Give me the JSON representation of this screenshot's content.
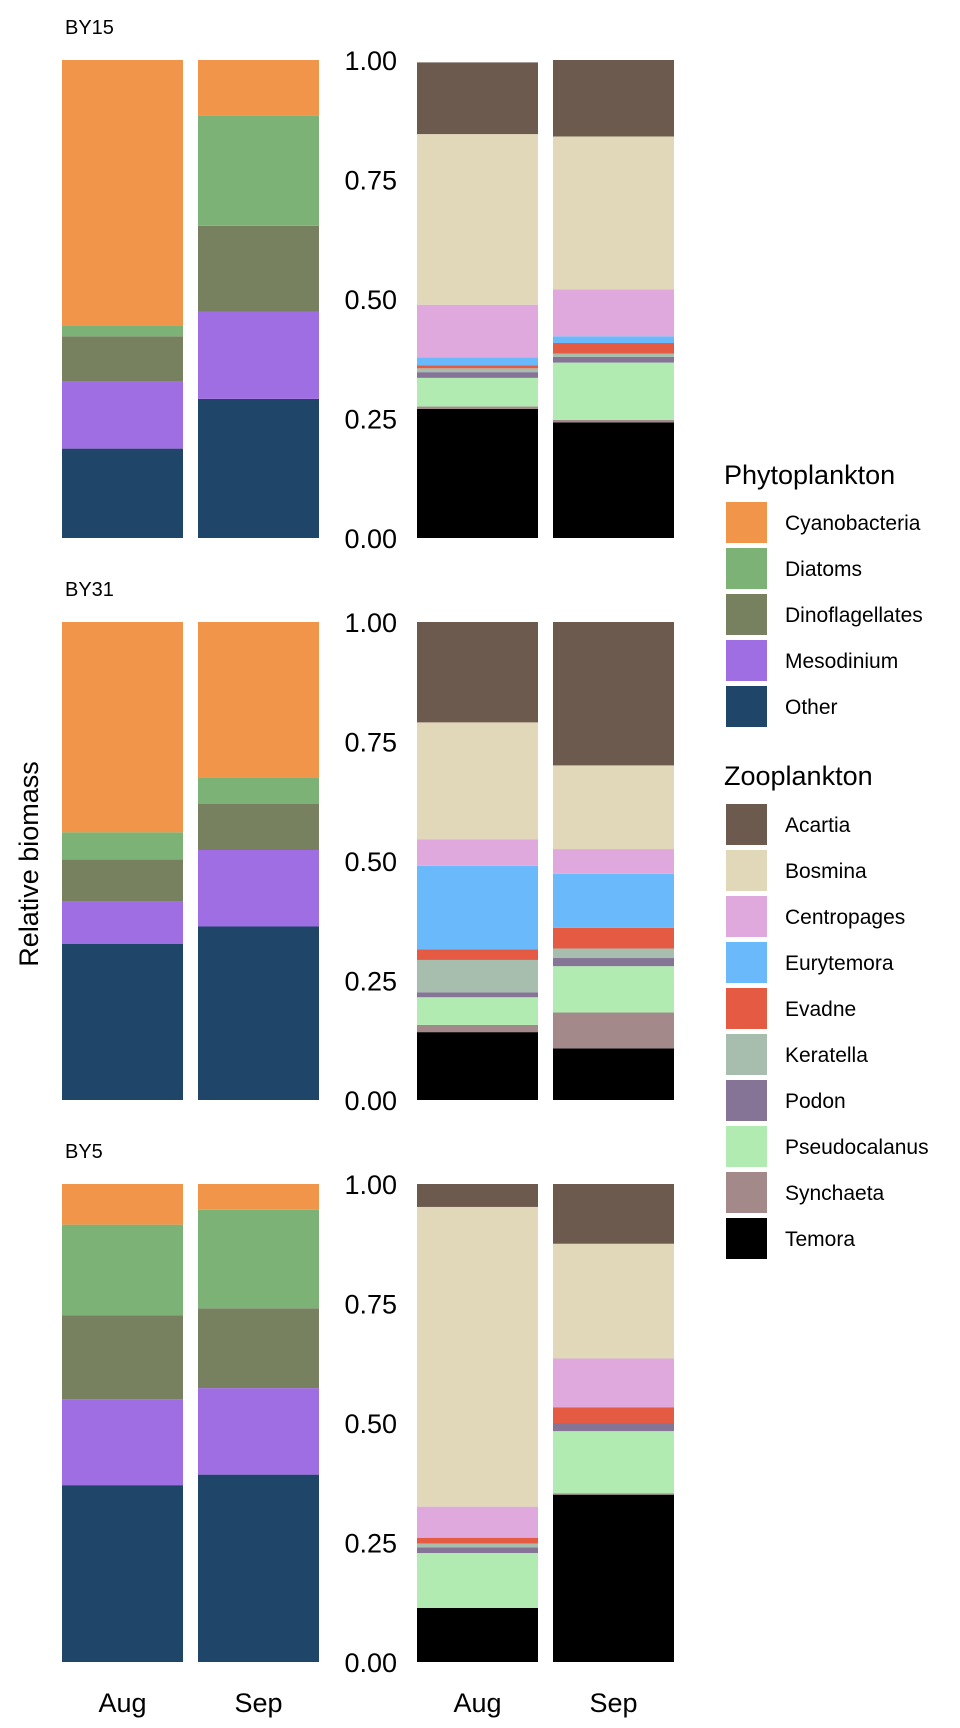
{
  "chart_data": {
    "type": "bar",
    "stacked": true,
    "ylabel": "Relative biomass",
    "ylim": [
      0,
      1
    ],
    "yticks": [
      "0.00",
      "0.25",
      "0.50",
      "0.75",
      "1.00"
    ],
    "categories": [
      "Aug",
      "Sep"
    ],
    "legends": {
      "phyto": {
        "title": "Phytoplankton",
        "items": [
          {
            "name": "Cyanobacteria",
            "color": "#F0954A"
          },
          {
            "name": "Diatoms",
            "color": "#7DB277"
          },
          {
            "name": "Dinoflagellates",
            "color": "#778160"
          },
          {
            "name": "Mesodinium",
            "color": "#A06EE3"
          },
          {
            "name": "Other",
            "color": "#1F4669"
          }
        ]
      },
      "zoo": {
        "title": "Zooplankton",
        "items": [
          {
            "name": "Acartia",
            "color": "#6D5A4F"
          },
          {
            "name": "Bosmina",
            "color": "#E0D8B9"
          },
          {
            "name": "Centropages",
            "color": "#E0A9DD"
          },
          {
            "name": "Eurytemora",
            "color": "#6AB9FA"
          },
          {
            "name": "Evadne",
            "color": "#E45A42"
          },
          {
            "name": "Keratella",
            "color": "#A7BDAD"
          },
          {
            "name": "Podon",
            "color": "#857496"
          },
          {
            "name": "Pseudocalanus",
            "color": "#B2EBB2"
          },
          {
            "name": "Synchaeta",
            "color": "#A3898A"
          },
          {
            "name": "Temora",
            "color": "#000000"
          }
        ]
      }
    },
    "stations": [
      {
        "name": "BY15",
        "phyto": {
          "Aug": {
            "Cyanobacteria": 0.555,
            "Diatoms": 0.023,
            "Dinoflagellates": 0.095,
            "Mesodinium": 0.14,
            "Other": 0.187
          },
          "Sep": {
            "Cyanobacteria": 0.117,
            "Diatoms": 0.23,
            "Dinoflagellates": 0.18,
            "Mesodinium": 0.182,
            "Other": 0.291
          }
        },
        "zoo": {
          "Aug": {
            "Acartia": 0.15,
            "Bosmina": 0.357,
            "Centropages": 0.11,
            "Eurytemora": 0.017,
            "Evadne": 0.006,
            "Keratella": 0.008,
            "Podon": 0.012,
            "Pseudocalanus": 0.06,
            "Synchaeta": 0.005,
            "Temora": 0.27
          },
          "Sep": {
            "Acartia": 0.16,
            "Bosmina": 0.32,
            "Centropages": 0.098,
            "Eurytemora": 0.014,
            "Evadne": 0.022,
            "Keratella": 0.007,
            "Podon": 0.012,
            "Pseudocalanus": 0.12,
            "Synchaeta": 0.005,
            "Temora": 0.242
          }
        }
      },
      {
        "name": "BY31",
        "phyto": {
          "Aug": {
            "Cyanobacteria": 0.44,
            "Diatoms": 0.057,
            "Dinoflagellates": 0.088,
            "Mesodinium": 0.088,
            "Other": 0.327
          },
          "Sep": {
            "Cyanobacteria": 0.325,
            "Diatoms": 0.055,
            "Dinoflagellates": 0.097,
            "Mesodinium": 0.16,
            "Other": 0.363
          }
        },
        "zoo": {
          "Aug": {
            "Acartia": 0.21,
            "Bosmina": 0.245,
            "Centropages": 0.055,
            "Eurytemora": 0.175,
            "Evadne": 0.022,
            "Keratella": 0.068,
            "Podon": 0.01,
            "Pseudocalanus": 0.058,
            "Synchaeta": 0.015,
            "Temora": 0.142
          },
          "Sep": {
            "Acartia": 0.3,
            "Bosmina": 0.175,
            "Centropages": 0.052,
            "Eurytemora": 0.113,
            "Evadne": 0.043,
            "Keratella": 0.02,
            "Podon": 0.017,
            "Pseudocalanus": 0.097,
            "Synchaeta": 0.075,
            "Temora": 0.108
          }
        }
      },
      {
        "name": "BY5",
        "phyto": {
          "Aug": {
            "Cyanobacteria": 0.085,
            "Diatoms": 0.19,
            "Dinoflagellates": 0.175,
            "Mesodinium": 0.18,
            "Other": 0.37
          },
          "Sep": {
            "Cyanobacteria": 0.054,
            "Diatoms": 0.206,
            "Dinoflagellates": 0.167,
            "Mesodinium": 0.181,
            "Other": 0.392
          }
        },
        "zoo": {
          "Aug": {
            "Acartia": 0.048,
            "Bosmina": 0.627,
            "Centropages": 0.065,
            "Eurytemora": 0,
            "Evadne": 0.012,
            "Keratella": 0.008,
            "Podon": 0.012,
            "Pseudocalanus": 0.115,
            "Synchaeta": 0,
            "Temora": 0.113
          },
          "Sep": {
            "Acartia": 0.125,
            "Bosmina": 0.24,
            "Centropages": 0.102,
            "Eurytemora": 0,
            "Evadne": 0.033,
            "Keratella": 0,
            "Podon": 0.017,
            "Pseudocalanus": 0.13,
            "Synchaeta": 0.003,
            "Temora": 0.35
          }
        }
      }
    ]
  }
}
